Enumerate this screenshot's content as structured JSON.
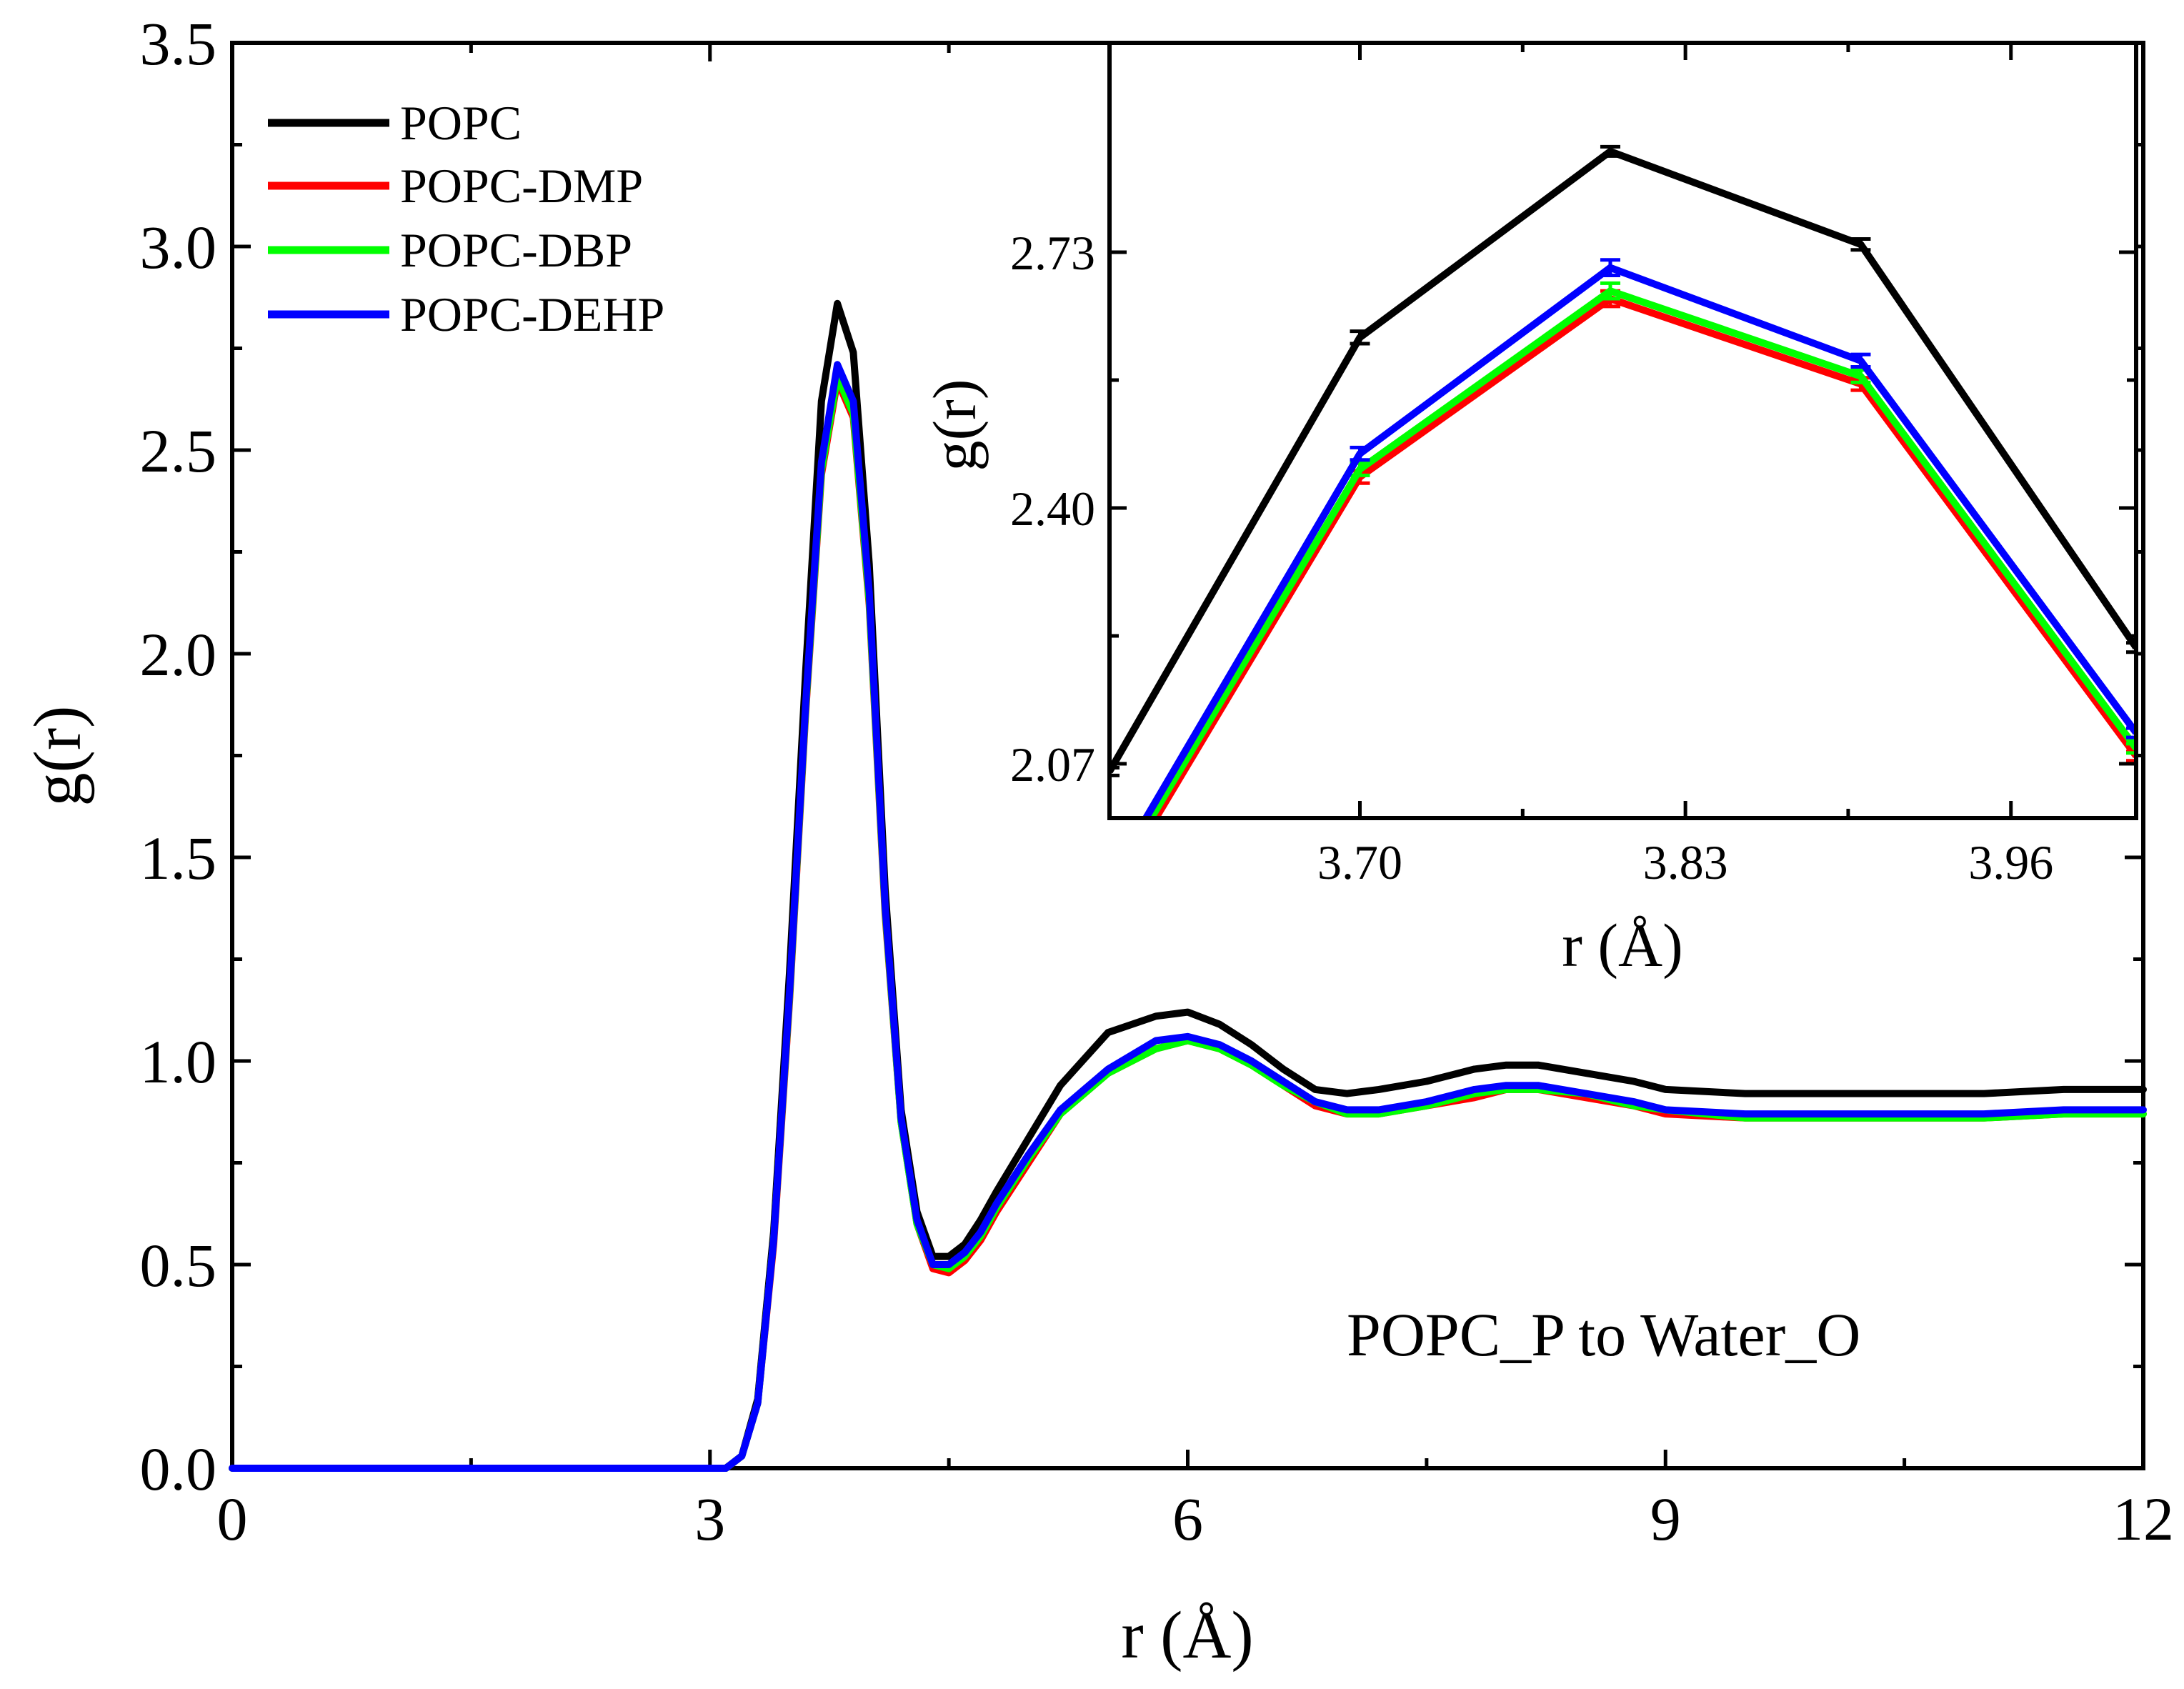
{
  "chart_data": [
    {
      "type": "line",
      "panel": "main",
      "title": "",
      "annotation": "POPC_P to Water_O",
      "xlabel": "r (Å)",
      "ylabel": "g(r)",
      "xlim": [
        0,
        12
      ],
      "ylim": [
        0,
        3.5
      ],
      "xticks": [
        0,
        3,
        6,
        9,
        12
      ],
      "xtick_labels": [
        "0",
        "3",
        "6",
        "9",
        "12"
      ],
      "yticks": [
        0,
        0.5,
        1.0,
        1.5,
        2.0,
        2.5,
        3.0,
        3.5
      ],
      "ytick_labels": [
        "0.0",
        "0.5",
        "1.0",
        "1.5",
        "2.0",
        "2.5",
        "3.0",
        "3.5"
      ],
      "legend_position": "top-left",
      "grid": false,
      "series": [
        {
          "name": "POPC",
          "color": "#000000",
          "x": [
            0,
            3.1,
            3.2,
            3.3,
            3.4,
            3.5,
            3.6,
            3.7,
            3.8,
            3.9,
            4.0,
            4.1,
            4.2,
            4.3,
            4.4,
            4.5,
            4.6,
            4.7,
            4.8,
            5.0,
            5.2,
            5.5,
            5.8,
            6.0,
            6.2,
            6.4,
            6.6,
            6.8,
            7.0,
            7.2,
            7.5,
            7.8,
            8.0,
            8.2,
            8.5,
            8.8,
            9.0,
            9.5,
            10.0,
            10.5,
            11.0,
            11.5,
            12.0
          ],
          "y": [
            0.0,
            0.0,
            0.03,
            0.17,
            0.58,
            1.22,
            1.95,
            2.62,
            2.86,
            2.74,
            2.22,
            1.42,
            0.88,
            0.63,
            0.52,
            0.52,
            0.55,
            0.61,
            0.68,
            0.81,
            0.94,
            1.07,
            1.11,
            1.12,
            1.09,
            1.04,
            0.98,
            0.93,
            0.92,
            0.93,
            0.95,
            0.98,
            0.99,
            0.99,
            0.97,
            0.95,
            0.93,
            0.92,
            0.92,
            0.92,
            0.92,
            0.93,
            0.93
          ]
        },
        {
          "name": "POPC-DMP",
          "color": "#ff0000",
          "x": [
            0,
            3.1,
            3.2,
            3.3,
            3.4,
            3.5,
            3.6,
            3.7,
            3.8,
            3.9,
            4.0,
            4.1,
            4.2,
            4.3,
            4.4,
            4.5,
            4.6,
            4.7,
            4.8,
            5.0,
            5.2,
            5.5,
            5.8,
            6.0,
            6.2,
            6.4,
            6.6,
            6.8,
            7.0,
            7.2,
            7.5,
            7.8,
            8.0,
            8.2,
            8.5,
            8.8,
            9.0,
            9.5,
            10.0,
            10.5,
            11.0,
            11.5,
            12.0
          ],
          "y": [
            0.0,
            0.0,
            0.03,
            0.16,
            0.55,
            1.15,
            1.85,
            2.44,
            2.67,
            2.58,
            2.12,
            1.36,
            0.85,
            0.6,
            0.49,
            0.48,
            0.51,
            0.56,
            0.63,
            0.75,
            0.87,
            0.97,
            1.03,
            1.05,
            1.03,
            0.99,
            0.94,
            0.89,
            0.87,
            0.87,
            0.89,
            0.91,
            0.93,
            0.93,
            0.91,
            0.89,
            0.87,
            0.86,
            0.86,
            0.86,
            0.86,
            0.87,
            0.87
          ]
        },
        {
          "name": "POPC-DBP",
          "color": "#00ff00",
          "x": [
            0,
            3.1,
            3.2,
            3.3,
            3.4,
            3.5,
            3.6,
            3.7,
            3.8,
            3.9,
            4.0,
            4.1,
            4.2,
            4.3,
            4.4,
            4.5,
            4.6,
            4.7,
            4.8,
            5.0,
            5.2,
            5.5,
            5.8,
            6.0,
            6.2,
            6.4,
            6.6,
            6.8,
            7.0,
            7.2,
            7.5,
            7.8,
            8.0,
            8.2,
            8.5,
            8.8,
            9.0,
            9.5,
            10.0,
            10.5,
            11.0,
            11.5,
            12.0
          ],
          "y": [
            0.0,
            0.0,
            0.03,
            0.16,
            0.56,
            1.16,
            1.86,
            2.45,
            2.68,
            2.59,
            2.13,
            1.37,
            0.85,
            0.6,
            0.5,
            0.49,
            0.52,
            0.57,
            0.64,
            0.76,
            0.87,
            0.97,
            1.03,
            1.05,
            1.03,
            0.99,
            0.94,
            0.9,
            0.87,
            0.87,
            0.89,
            0.92,
            0.93,
            0.93,
            0.92,
            0.89,
            0.88,
            0.86,
            0.86,
            0.86,
            0.86,
            0.87,
            0.87
          ]
        },
        {
          "name": "POPC-DEHP",
          "color": "#0000ff",
          "x": [
            0,
            3.1,
            3.2,
            3.3,
            3.4,
            3.5,
            3.6,
            3.7,
            3.8,
            3.9,
            4.0,
            4.1,
            4.2,
            4.3,
            4.4,
            4.5,
            4.6,
            4.7,
            4.8,
            5.0,
            5.2,
            5.5,
            5.8,
            6.0,
            6.2,
            6.4,
            6.6,
            6.8,
            7.0,
            7.2,
            7.5,
            7.8,
            8.0,
            8.2,
            8.5,
            8.8,
            9.0,
            9.5,
            10.0,
            10.5,
            11.0,
            11.5,
            12.0
          ],
          "y": [
            0.0,
            0.0,
            0.03,
            0.16,
            0.56,
            1.17,
            1.87,
            2.47,
            2.71,
            2.62,
            2.15,
            1.38,
            0.86,
            0.61,
            0.5,
            0.5,
            0.53,
            0.58,
            0.65,
            0.77,
            0.88,
            0.98,
            1.05,
            1.06,
            1.04,
            1.0,
            0.95,
            0.9,
            0.88,
            0.88,
            0.9,
            0.93,
            0.94,
            0.94,
            0.92,
            0.9,
            0.88,
            0.87,
            0.87,
            0.87,
            0.87,
            0.88,
            0.88
          ]
        }
      ]
    },
    {
      "type": "line",
      "panel": "inset",
      "title": "",
      "xlabel": "r (Å)",
      "ylabel": "g(r)",
      "xlim": [
        3.6,
        4.01
      ],
      "ylim": [
        2.0,
        3.0
      ],
      "xticks": [
        3.7,
        3.83,
        3.96
      ],
      "xtick_labels": [
        "3.70",
        "3.83",
        "3.96"
      ],
      "yticks": [
        2.07,
        2.4,
        2.73
      ],
      "ytick_labels": [
        "2.07",
        "2.40",
        "2.73"
      ],
      "error_bars": true,
      "series": [
        {
          "name": "POPC",
          "color": "#000000",
          "x": [
            3.6,
            3.7,
            3.8,
            3.9,
            4.01
          ],
          "y": [
            2.06,
            2.62,
            2.86,
            2.74,
            2.22
          ],
          "err": [
            0.005,
            0.008,
            0.006,
            0.007,
            0.006
          ]
        },
        {
          "name": "POPC-DMP",
          "color": "#ff0000",
          "x": [
            3.6,
            3.7,
            3.8,
            3.9,
            4.01
          ],
          "y": [
            1.9,
            2.44,
            2.67,
            2.56,
            2.08
          ],
          "err": [
            0.005,
            0.008,
            0.01,
            0.008,
            0.006
          ]
        },
        {
          "name": "POPC-DBP",
          "color": "#00ff00",
          "x": [
            3.6,
            3.7,
            3.8,
            3.9,
            4.01
          ],
          "y": [
            1.91,
            2.45,
            2.68,
            2.57,
            2.09
          ],
          "err": [
            0.005,
            0.008,
            0.01,
            0.008,
            0.006
          ]
        },
        {
          "name": "POPC-DEHP",
          "color": "#0000ff",
          "x": [
            3.6,
            3.7,
            3.8,
            3.9,
            4.01
          ],
          "y": [
            1.92,
            2.47,
            2.71,
            2.59,
            2.11
          ],
          "err": [
            0.005,
            0.008,
            0.01,
            0.008,
            0.006
          ]
        }
      ]
    }
  ]
}
